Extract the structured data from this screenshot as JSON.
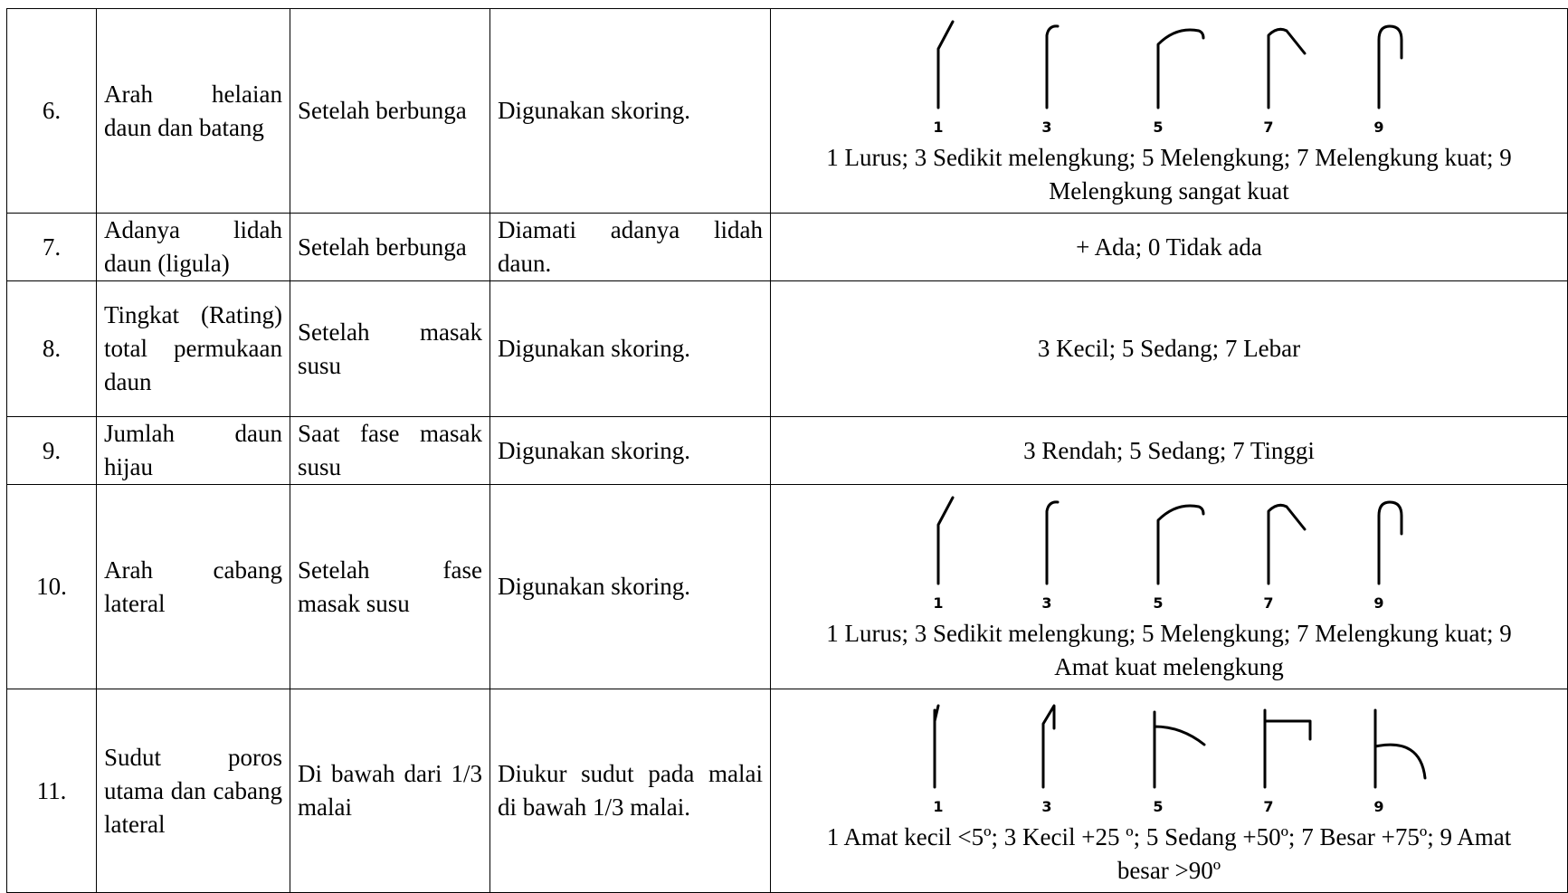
{
  "table": {
    "rows": [
      {
        "no": "6.",
        "character": "Arah helaian daun dan batang",
        "time": "Setelah berbunga",
        "method": "Digunakan skoring.",
        "scores": "1 Lurus; 3 Sedikit melengkung; 5 Melengkung; 7 Melengkung kuat; 9 Melengkung sangat kuat",
        "figure_labels": [
          "1",
          "3",
          "5",
          "7",
          "9"
        ]
      },
      {
        "no": "7.",
        "character": "Adanya lidah daun (ligula)",
        "time": "Setelah berbunga",
        "method": "Diamati adanya lidah daun.",
        "scores": "+ Ada; 0 Tidak ada"
      },
      {
        "no": "8.",
        "character": "Tingkat (Rating) total permukaan daun",
        "time": "Setelah masak susu",
        "method": "Digunakan skoring.",
        "scores": "3 Kecil; 5 Sedang; 7 Lebar"
      },
      {
        "no": "9.",
        "character": "Jumlah daun hijau",
        "time": "Saat fase masak susu",
        "method": "Digunakan skoring.",
        "scores": "3 Rendah; 5 Sedang; 7 Tinggi"
      },
      {
        "no": "10.",
        "character": "Arah cabang lateral",
        "time": "Setelah fase masak susu",
        "method": "Digunakan skoring.",
        "scores": "1 Lurus; 3 Sedikit melengkung; 5 Melengkung; 7 Melengkung kuat; 9 Amat kuat melengkung",
        "figure_labels": [
          "1",
          "3",
          "5",
          "7",
          "9"
        ]
      },
      {
        "no": "11.",
        "character": "Sudut poros utama dan cabang lateral",
        "time": "Di bawah dari 1/3 malai",
        "method": "Diukur sudut pada malai di bawah 1/3 malai.",
        "scores": "1 Amat kecil <5º; 3 Kecil +25 º; 5 Sedang +50º; 7 Besar +75º; 9 Amat besar >90º",
        "figure_labels": [
          "1",
          "3",
          "5",
          "7",
          "9"
        ]
      }
    ]
  }
}
